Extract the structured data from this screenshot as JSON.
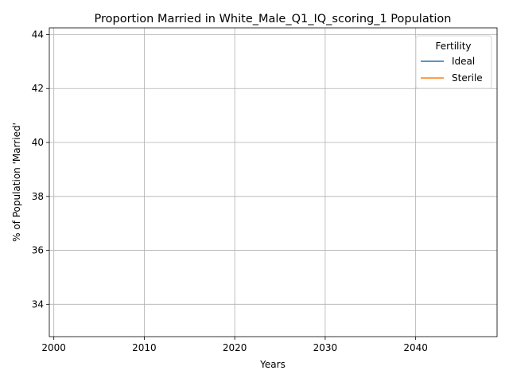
{
  "chart_data": {
    "type": "line",
    "title": "Proportion Married in White_Male_Q1_IQ_scoring_1 Population",
    "xlabel": "Years",
    "ylabel": "% of Population 'Married'",
    "xlim": [
      1999.5,
      2049.0
    ],
    "ylim": [
      32.8,
      44.25
    ],
    "xticks": [
      2000,
      2010,
      2020,
      2030,
      2040
    ],
    "yticks": [
      34,
      36,
      38,
      40,
      42,
      44
    ],
    "grid": true,
    "legend": {
      "title": "Fertility",
      "placement": "top-right"
    },
    "series": [
      {
        "name": "Ideal",
        "color": "#1f77b4",
        "x": [],
        "y": []
      },
      {
        "name": "Sterile",
        "color": "#ff7f0e",
        "x": [],
        "y": []
      }
    ]
  }
}
